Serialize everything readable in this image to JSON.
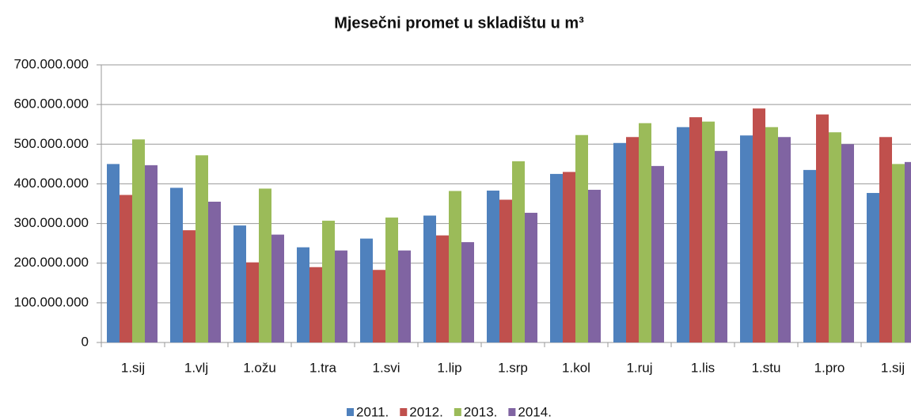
{
  "chart_data": {
    "type": "bar",
    "title": "Mjesečni promet u skladištu  u m³",
    "categories": [
      "1.sij",
      "1.vlj",
      "1.ožu",
      "1.tra",
      "1.svi",
      "1.lip",
      "1.srp",
      "1.kol",
      "1.ruj",
      "1.lis",
      "1.stu",
      "1.pro",
      "1.sij"
    ],
    "series": [
      {
        "name": "2011.",
        "color": "#4f81bd",
        "values": [
          450000000,
          390000000,
          295000000,
          240000000,
          262000000,
          320000000,
          383000000,
          425000000,
          503000000,
          543000000,
          522000000,
          435000000,
          377000000
        ]
      },
      {
        "name": "2012.",
        "color": "#c0504d",
        "values": [
          372000000,
          283000000,
          202000000,
          190000000,
          183000000,
          270000000,
          360000000,
          430000000,
          518000000,
          568000000,
          590000000,
          575000000,
          518000000
        ]
      },
      {
        "name": "2013.",
        "color": "#9bbb59",
        "values": [
          512000000,
          472000000,
          388000000,
          307000000,
          315000000,
          382000000,
          457000000,
          523000000,
          553000000,
          557000000,
          543000000,
          530000000,
          450000000
        ]
      },
      {
        "name": "2014.",
        "color": "#8064a2",
        "values": [
          447000000,
          355000000,
          272000000,
          232000000,
          232000000,
          253000000,
          327000000,
          385000000,
          445000000,
          483000000,
          518000000,
          500000000,
          455000000
        ]
      }
    ],
    "ylim": [
      0,
      700000000
    ],
    "yticks": [
      0,
      {
        "value": 100000000,
        "label": "100.000.000"
      },
      {
        "value": 200000000,
        "label": "200.000.000"
      },
      {
        "value": 300000000,
        "label": "300.000.000"
      },
      {
        "value": 400000000,
        "label": "400.000.000"
      },
      {
        "value": 500000000,
        "label": "500.000.000"
      },
      {
        "value": 600000000,
        "label": "600.000.000"
      },
      {
        "value": 700000000,
        "label": "700.000.000"
      }
    ],
    "grid": true,
    "legend": "bottom"
  }
}
